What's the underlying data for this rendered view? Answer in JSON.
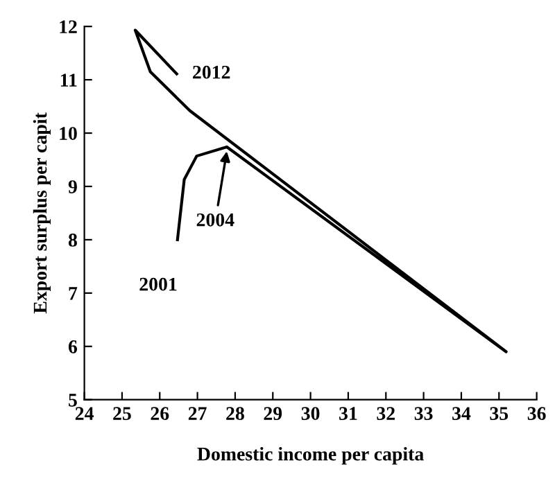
{
  "chart_data": {
    "type": "line",
    "xlabel": "Domestic income per capita",
    "ylabel": "Export surplus per capit",
    "series": [
      {
        "color": "#000000",
        "x": [
          26.47,
          26.65,
          26.98,
          27.78,
          35.19,
          26.8,
          25.75,
          25.35,
          26.45
        ],
        "values": [
          8.0,
          9.13,
          9.57,
          9.74,
          5.9,
          10.42,
          11.15,
          11.93,
          11.11
        ]
      }
    ],
    "xlim": [
      24,
      36
    ],
    "xticks": [
      24,
      25,
      26,
      27,
      28,
      29,
      30,
      31,
      32,
      33,
      34,
      35,
      36
    ],
    "ylim": [
      5,
      12
    ],
    "yticks": [
      5,
      6,
      7,
      8,
      9,
      10,
      11,
      12
    ],
    "annotations": [
      {
        "text": "2012",
        "x": 26.45,
        "y": 11.11
      },
      {
        "text": "2004",
        "x": 27.78,
        "y": 9.74
      },
      {
        "text": "2001",
        "x": 26.47,
        "y": 8.0
      }
    ],
    "grid": false,
    "legend": false,
    "marker": "none",
    "line_style": "solid"
  }
}
